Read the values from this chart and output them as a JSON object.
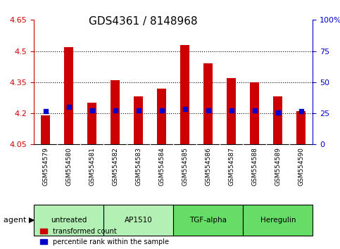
{
  "title": "GDS4361 / 8148968",
  "samples": [
    "GSM554579",
    "GSM554580",
    "GSM554581",
    "GSM554582",
    "GSM554583",
    "GSM554584",
    "GSM554585",
    "GSM554586",
    "GSM554587",
    "GSM554588",
    "GSM554589",
    "GSM554590"
  ],
  "red_values": [
    4.19,
    4.52,
    4.25,
    4.36,
    4.28,
    4.32,
    4.53,
    4.44,
    4.37,
    4.35,
    4.28,
    4.21
  ],
  "blue_values": [
    4.21,
    4.23,
    4.215,
    4.215,
    4.215,
    4.215,
    4.22,
    4.215,
    4.215,
    4.215,
    4.205,
    4.21
  ],
  "y_min": 4.05,
  "y_max": 4.65,
  "y_ticks_left": [
    4.05,
    4.2,
    4.35,
    4.5,
    4.65
  ],
  "y_ticks_right": [
    0,
    25,
    50,
    75,
    100
  ],
  "dotted_lines": [
    4.2,
    4.35,
    4.5
  ],
  "agents": [
    {
      "label": "untreated",
      "start": 0,
      "end": 3,
      "color": "#90ee90"
    },
    {
      "label": "AP1510",
      "start": 3,
      "end": 6,
      "color": "#90ee90"
    },
    {
      "label": "TGF-alpha",
      "start": 6,
      "end": 9,
      "color": "#66cc66"
    },
    {
      "label": "Heregulin",
      "start": 9,
      "end": 12,
      "color": "#66cc66"
    }
  ],
  "bar_width": 0.4,
  "red_color": "#cc0000",
  "blue_color": "#0000cc",
  "legend_red": "transformed count",
  "legend_blue": "percentile rank within the sample",
  "agent_label": "agent",
  "bg_plot": "#ffffff",
  "bg_tick_area": "#d3d3d3",
  "tick_fontsize": 8,
  "label_fontsize": 9,
  "title_fontsize": 11
}
